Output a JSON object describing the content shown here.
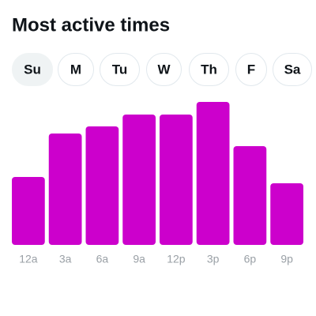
{
  "title": "Most active times",
  "days": [
    "Su",
    "M",
    "Tu",
    "W",
    "Th",
    "F",
    "Sa"
  ],
  "selected_day_index": 0,
  "chart_data": {
    "type": "bar",
    "categories": [
      "12a",
      "3a",
      "6a",
      "9a",
      "12p",
      "3p",
      "6p",
      "9p"
    ],
    "values": [
      86,
      141,
      150,
      165,
      165,
      181,
      125,
      78
    ],
    "color": "#cc00cc"
  }
}
